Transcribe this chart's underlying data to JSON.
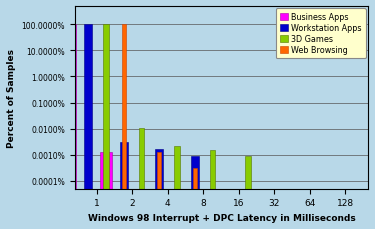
{
  "xlabel": "Windows 98 Interrupt + DPC Latency in Milliseconds",
  "ylabel": "Percent of Samples",
  "background_color": "#b8d8e8",
  "legend_bg": "#ffffcc",
  "x_positions": [
    1,
    2,
    4,
    8,
    16,
    32,
    64,
    128
  ],
  "x_labels": [
    "1",
    "2",
    "4",
    "8",
    "16",
    "32",
    "64",
    "128"
  ],
  "series": [
    {
      "name": "Business Apps",
      "color": "#ff00ff",
      "edge_color": "#aa00aa",
      "data": [
        99.9,
        0.0013,
        0.0,
        0.0,
        0.0,
        0.0,
        0.0,
        0.0
      ]
    },
    {
      "name": "Workstation Apps",
      "color": "#0000cc",
      "edge_color": "#000088",
      "data": [
        99.9,
        0.003,
        0.0017,
        0.0009,
        0.0,
        0.0,
        0.0,
        0.0
      ]
    },
    {
      "name": "3D Games",
      "color": "#88cc00",
      "edge_color": "#557700",
      "data": [
        99.9,
        0.011,
        0.0022,
        0.0015,
        0.0009,
        0.0,
        0.0,
        0.0
      ]
    },
    {
      "name": "Web Browsing",
      "color": "#ff6600",
      "edge_color": "#cc4400",
      "data": [
        99.9,
        0.0013,
        0.00032,
        0.0,
        0.0,
        0.0,
        0.0,
        0.0
      ]
    }
  ],
  "yticks": [
    0.0001,
    0.001,
    0.01,
    0.1,
    1.0,
    10.0,
    100.0
  ],
  "ylabels": [
    "0.0001%",
    "0.0010%",
    "0.0100%",
    "0.1000%",
    "1.0000%",
    "10.0000%",
    "100.0000%"
  ],
  "ylim_min": 5e-05,
  "ylim_max": 500.0,
  "xlim_min": 0.65,
  "xlim_max": 200.0
}
